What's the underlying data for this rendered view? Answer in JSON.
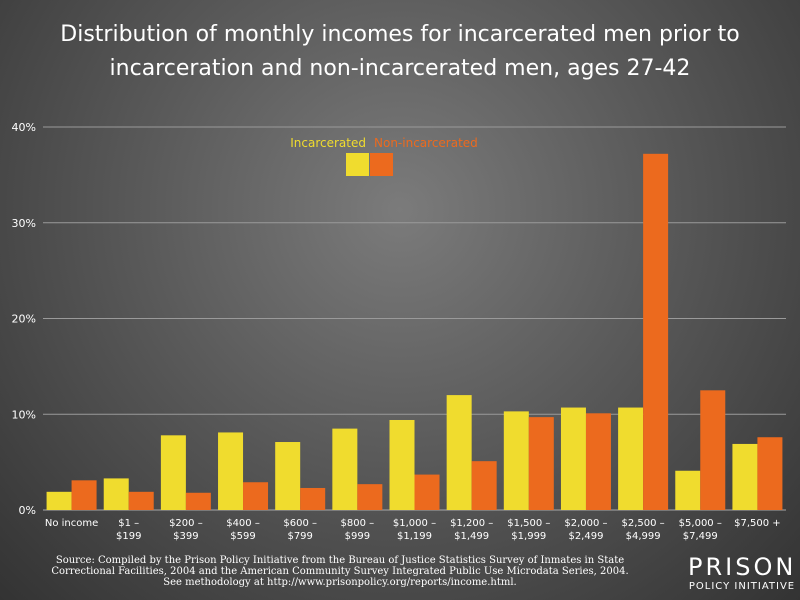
{
  "chart_data": {
    "type": "bar",
    "title": [
      "Distribution of monthly incomes for incarcerated men prior to",
      "incarceration and non-incarcerated men, ages 27-42"
    ],
    "xlabel": "",
    "ylabel": "",
    "ylim": [
      0,
      40
    ],
    "yticks": [
      "0%",
      "10%",
      "20%",
      "30%",
      "40%"
    ],
    "ytick_values": [
      0,
      10,
      20,
      30,
      40
    ],
    "grid": true,
    "legend_position": "top-center",
    "categories": [
      [
        "No income"
      ],
      [
        "$1 –",
        "$199"
      ],
      [
        "$200 –",
        "$399"
      ],
      [
        "$400 –",
        "$599"
      ],
      [
        "$600 –",
        "$799"
      ],
      [
        "$800 –",
        "$999"
      ],
      [
        "$1,000 –",
        "$1,199"
      ],
      [
        "$1,200 –",
        "$1,499"
      ],
      [
        "$1,500 –",
        "$1,999"
      ],
      [
        "$2,000 –",
        "$2,499"
      ],
      [
        "$2,500 –",
        "$4,999"
      ],
      [
        "$5,000 –",
        "$7,499"
      ],
      [
        "$7,500 +"
      ]
    ],
    "series": [
      {
        "name": "Incarcerated",
        "color": "#f0dc2e",
        "values": [
          1.9,
          3.3,
          7.8,
          8.1,
          7.1,
          8.5,
          9.4,
          12.0,
          10.3,
          10.7,
          10.7,
          4.1,
          6.9
        ]
      },
      {
        "name": "Non-incarcerated",
        "color": "#ec6a1e",
        "values": [
          3.1,
          1.9,
          1.8,
          2.9,
          2.3,
          2.7,
          3.7,
          5.1,
          9.7,
          10.1,
          37.2,
          12.5,
          7.6
        ]
      }
    ]
  },
  "source": [
    "Source: Compiled by the Prison Policy Initiative from the Bureau of Justice Statistics Survey of Inmates in State",
    "Correctional Facilities, 2004 and the American Community Survey Integrated Public Use Microdata Series, 2004.",
    "See methodology at http://www.prisonpolicy.org/reports/income.html."
  ],
  "logo": {
    "line1": "PRISON",
    "line2": "POLICY INITIATIVE"
  }
}
